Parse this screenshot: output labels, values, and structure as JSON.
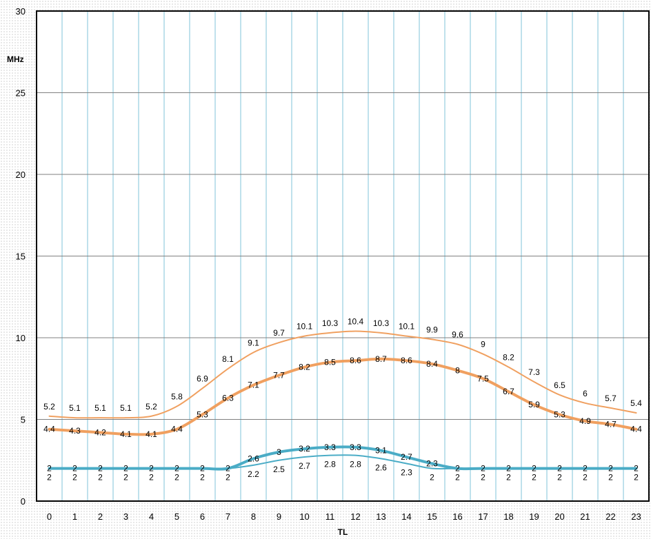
{
  "chart_data": {
    "type": "line",
    "title": "",
    "xlabel": "TL",
    "ylabel": "MHz",
    "x": [
      0,
      1,
      2,
      3,
      4,
      5,
      6,
      7,
      8,
      9,
      10,
      11,
      12,
      13,
      14,
      15,
      16,
      17,
      18,
      19,
      20,
      21,
      22,
      23
    ],
    "ylim": [
      0,
      30
    ],
    "yticks": [
      0,
      5,
      10,
      15,
      20,
      25,
      30
    ],
    "grid": true,
    "legend": "none",
    "series": [
      {
        "color": "#f0a060",
        "stroke": "thin",
        "label_position": "above",
        "values": [
          5.2,
          5.1,
          5.1,
          5.1,
          5.2,
          5.8,
          6.9,
          8.1,
          9.1,
          9.7,
          10.1,
          10.3,
          10.4,
          10.3,
          10.1,
          9.9,
          9.6,
          9,
          8.2,
          7.3,
          6.5,
          6,
          5.7,
          5.4
        ]
      },
      {
        "color": "#f0a060",
        "stroke": "thick",
        "label_position": "on",
        "values": [
          4.4,
          4.3,
          4.2,
          4.1,
          4.1,
          4.4,
          5.3,
          6.3,
          7.1,
          7.7,
          8.2,
          8.5,
          8.6,
          8.7,
          8.6,
          8.4,
          8,
          7.5,
          6.7,
          5.9,
          5.3,
          4.9,
          4.7,
          4.4
        ]
      },
      {
        "color": "#4aacc6",
        "stroke": "thick",
        "label_position": "on",
        "values": [
          2,
          2,
          2,
          2,
          2,
          2,
          2,
          2,
          2.6,
          3,
          3.2,
          3.3,
          3.3,
          3.1,
          2.7,
          2.3,
          2,
          2,
          2,
          2,
          2,
          2,
          2,
          2
        ]
      },
      {
        "color": "#4aacc6",
        "stroke": "thin",
        "label_position": "below",
        "values": [
          2,
          2,
          2,
          2,
          2,
          2,
          2,
          2,
          2.2,
          2.5,
          2.7,
          2.8,
          2.8,
          2.6,
          2.3,
          2,
          2,
          2,
          2,
          2,
          2,
          2,
          2,
          2
        ]
      }
    ]
  }
}
